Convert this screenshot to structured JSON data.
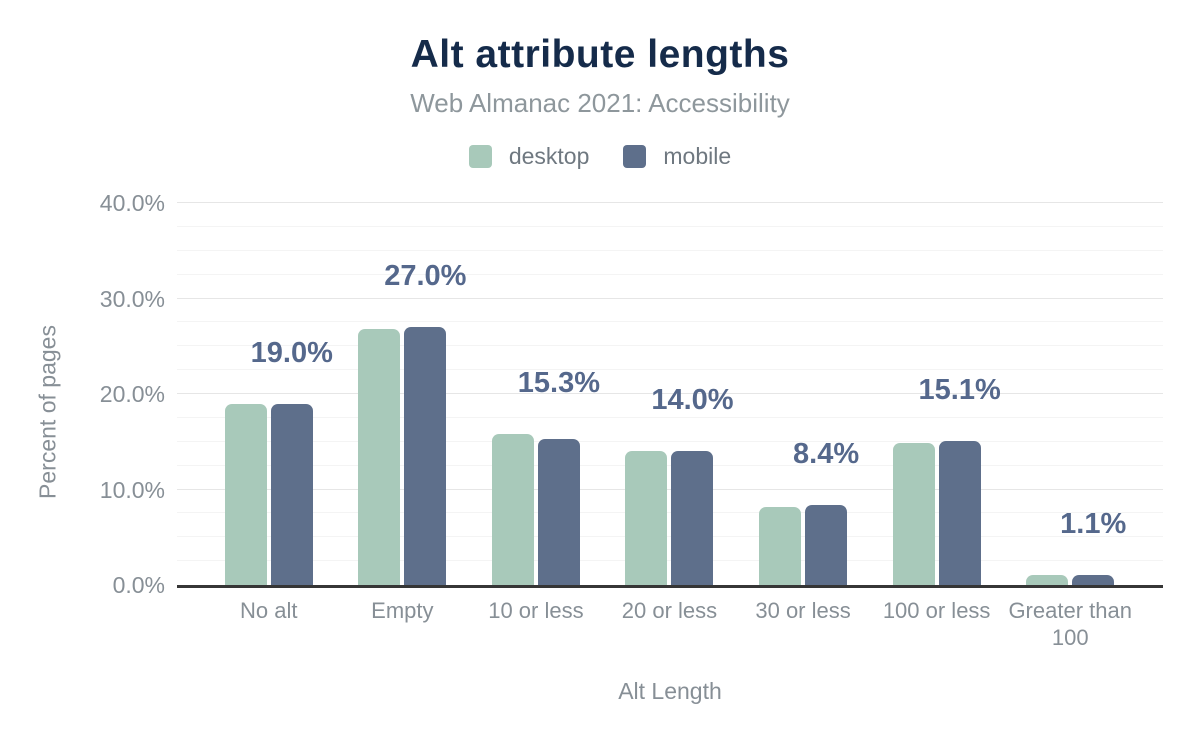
{
  "chart_data": {
    "type": "bar",
    "title": "Alt attribute lengths",
    "subtitle": "Web Almanac 2021: Accessibility",
    "xlabel": "Alt Length",
    "ylabel": "Percent of pages",
    "ylim": [
      0,
      40
    ],
    "yticks": [
      {
        "value": 0,
        "label": "0.0%"
      },
      {
        "value": 10,
        "label": "10.0%"
      },
      {
        "value": 20,
        "label": "20.0%"
      },
      {
        "value": 30,
        "label": "30.0%"
      },
      {
        "value": 40,
        "label": "40.0%"
      }
    ],
    "minor_gridline_step": 2.5,
    "grid": "horizontal",
    "legend_position": "top",
    "categories": [
      "No alt",
      "Empty",
      "10 or less",
      "20 or less",
      "30 or less",
      "100 or less",
      "Greater than 100"
    ],
    "series": [
      {
        "name": "desktop",
        "color": "#a8c9ba",
        "values": [
          19.0,
          26.8,
          15.8,
          14.0,
          8.2,
          14.9,
          1.1
        ]
      },
      {
        "name": "mobile",
        "color": "#5e6f8b",
        "values": [
          19.0,
          27.0,
          15.3,
          14.0,
          8.4,
          15.1,
          1.1
        ]
      }
    ],
    "data_labels": {
      "anchored_to_series": "mobile",
      "values": [
        "19.0%",
        "27.0%",
        "15.3%",
        "14.0%",
        "8.4%",
        "15.1%",
        "1.1%"
      ]
    }
  },
  "colors": {
    "title": "#152b4a",
    "subtitle": "#8e979c",
    "legend_text": "#6f7880",
    "axis_text": "#878f96",
    "data_label": "#55688c",
    "axis_line": "#363636",
    "grid_major": "#e6e6e6",
    "grid_minor": "#f4f4f4",
    "background": "#ffffff"
  }
}
